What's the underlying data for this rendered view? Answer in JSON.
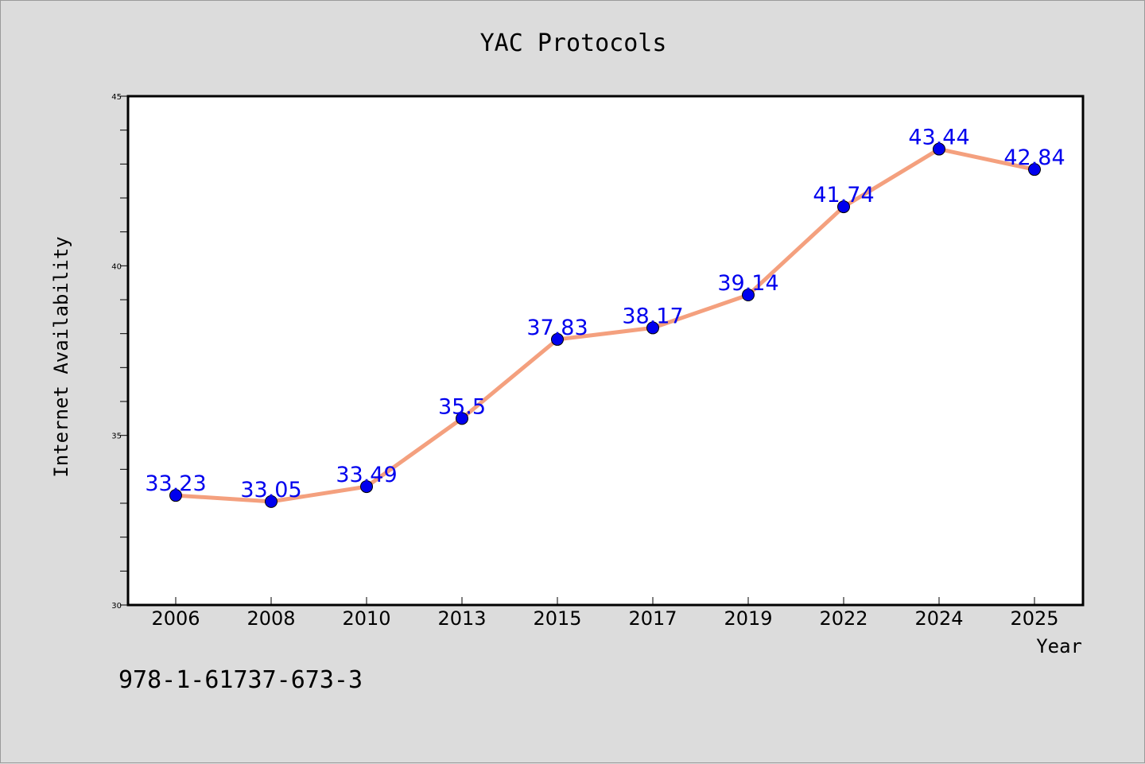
{
  "chart_data": {
    "type": "line",
    "title": "YAC Protocols",
    "xlabel": "Year",
    "ylabel": "Internet Availability",
    "categories": [
      "2006",
      "2008",
      "2010",
      "2013",
      "2015",
      "2017",
      "2019",
      "2022",
      "2024",
      "2025"
    ],
    "values": [
      33.23,
      33.05,
      33.49,
      35.5,
      37.83,
      38.17,
      39.14,
      41.74,
      43.44,
      42.84
    ],
    "data_labels": [
      "33.23",
      "33.05",
      "33.49",
      "35.5",
      "37.83",
      "38.17",
      "39.14",
      "41.74",
      "43.44",
      "42.84"
    ],
    "ylim": [
      30,
      45
    ],
    "yticks": [
      "30",
      "35",
      "40",
      "45"
    ],
    "grid": false,
    "line_color": "#f4a07e",
    "marker_color": "#0000ee",
    "label_color": "#0000ee"
  },
  "footer_text": "978-1-61737-673-3"
}
